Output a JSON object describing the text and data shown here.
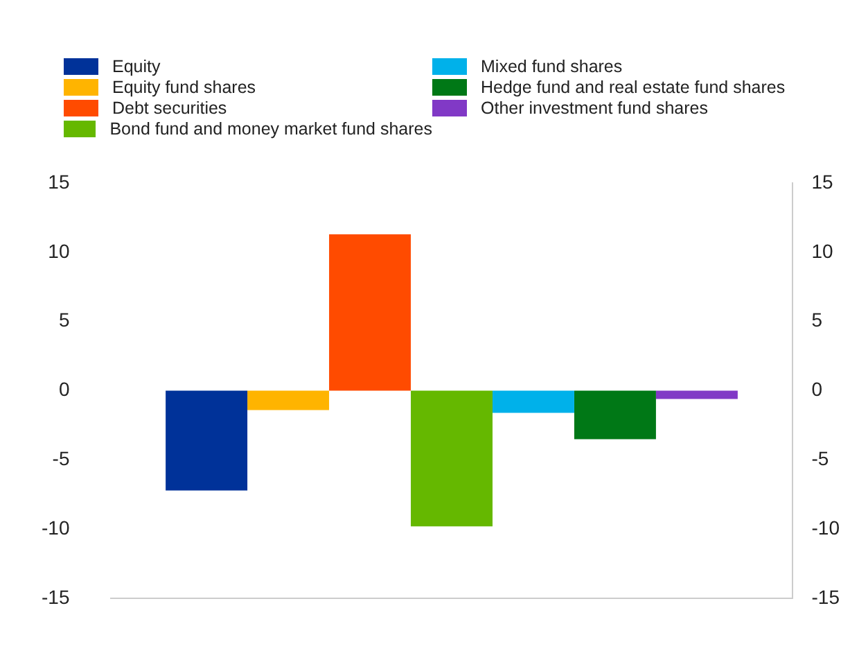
{
  "chart_data": {
    "type": "bar",
    "categories": [
      null
    ],
    "series": [
      {
        "name": "Equity",
        "color": "#003299",
        "values": [
          -7.2
        ]
      },
      {
        "name": "Equity fund shares",
        "color": "#ffb400",
        "values": [
          -1.4
        ]
      },
      {
        "name": "Debt securities",
        "color": "#ff4b00",
        "values": [
          11.3
        ]
      },
      {
        "name": "Bond fund and money market fund shares",
        "color": "#65b800",
        "values": [
          -9.8
        ]
      },
      {
        "name": "Mixed fund shares",
        "color": "#00b1ea",
        "values": [
          -1.6
        ]
      },
      {
        "name": "Hedge fund and real estate fund shares",
        "color": "#007816",
        "values": [
          -3.5
        ]
      },
      {
        "name": "Other investment fund shares",
        "color": "#8139c6",
        "values": [
          -0.6
        ]
      }
    ],
    "ylim": [
      -15,
      15
    ],
    "yticks": [
      -15,
      -10,
      -5,
      0,
      5,
      10,
      15
    ],
    "y2lim": [
      -15,
      15
    ],
    "y2ticks": [
      -15,
      -10,
      -5,
      0,
      5,
      10,
      15
    ],
    "grid": false,
    "legend": "top"
  }
}
